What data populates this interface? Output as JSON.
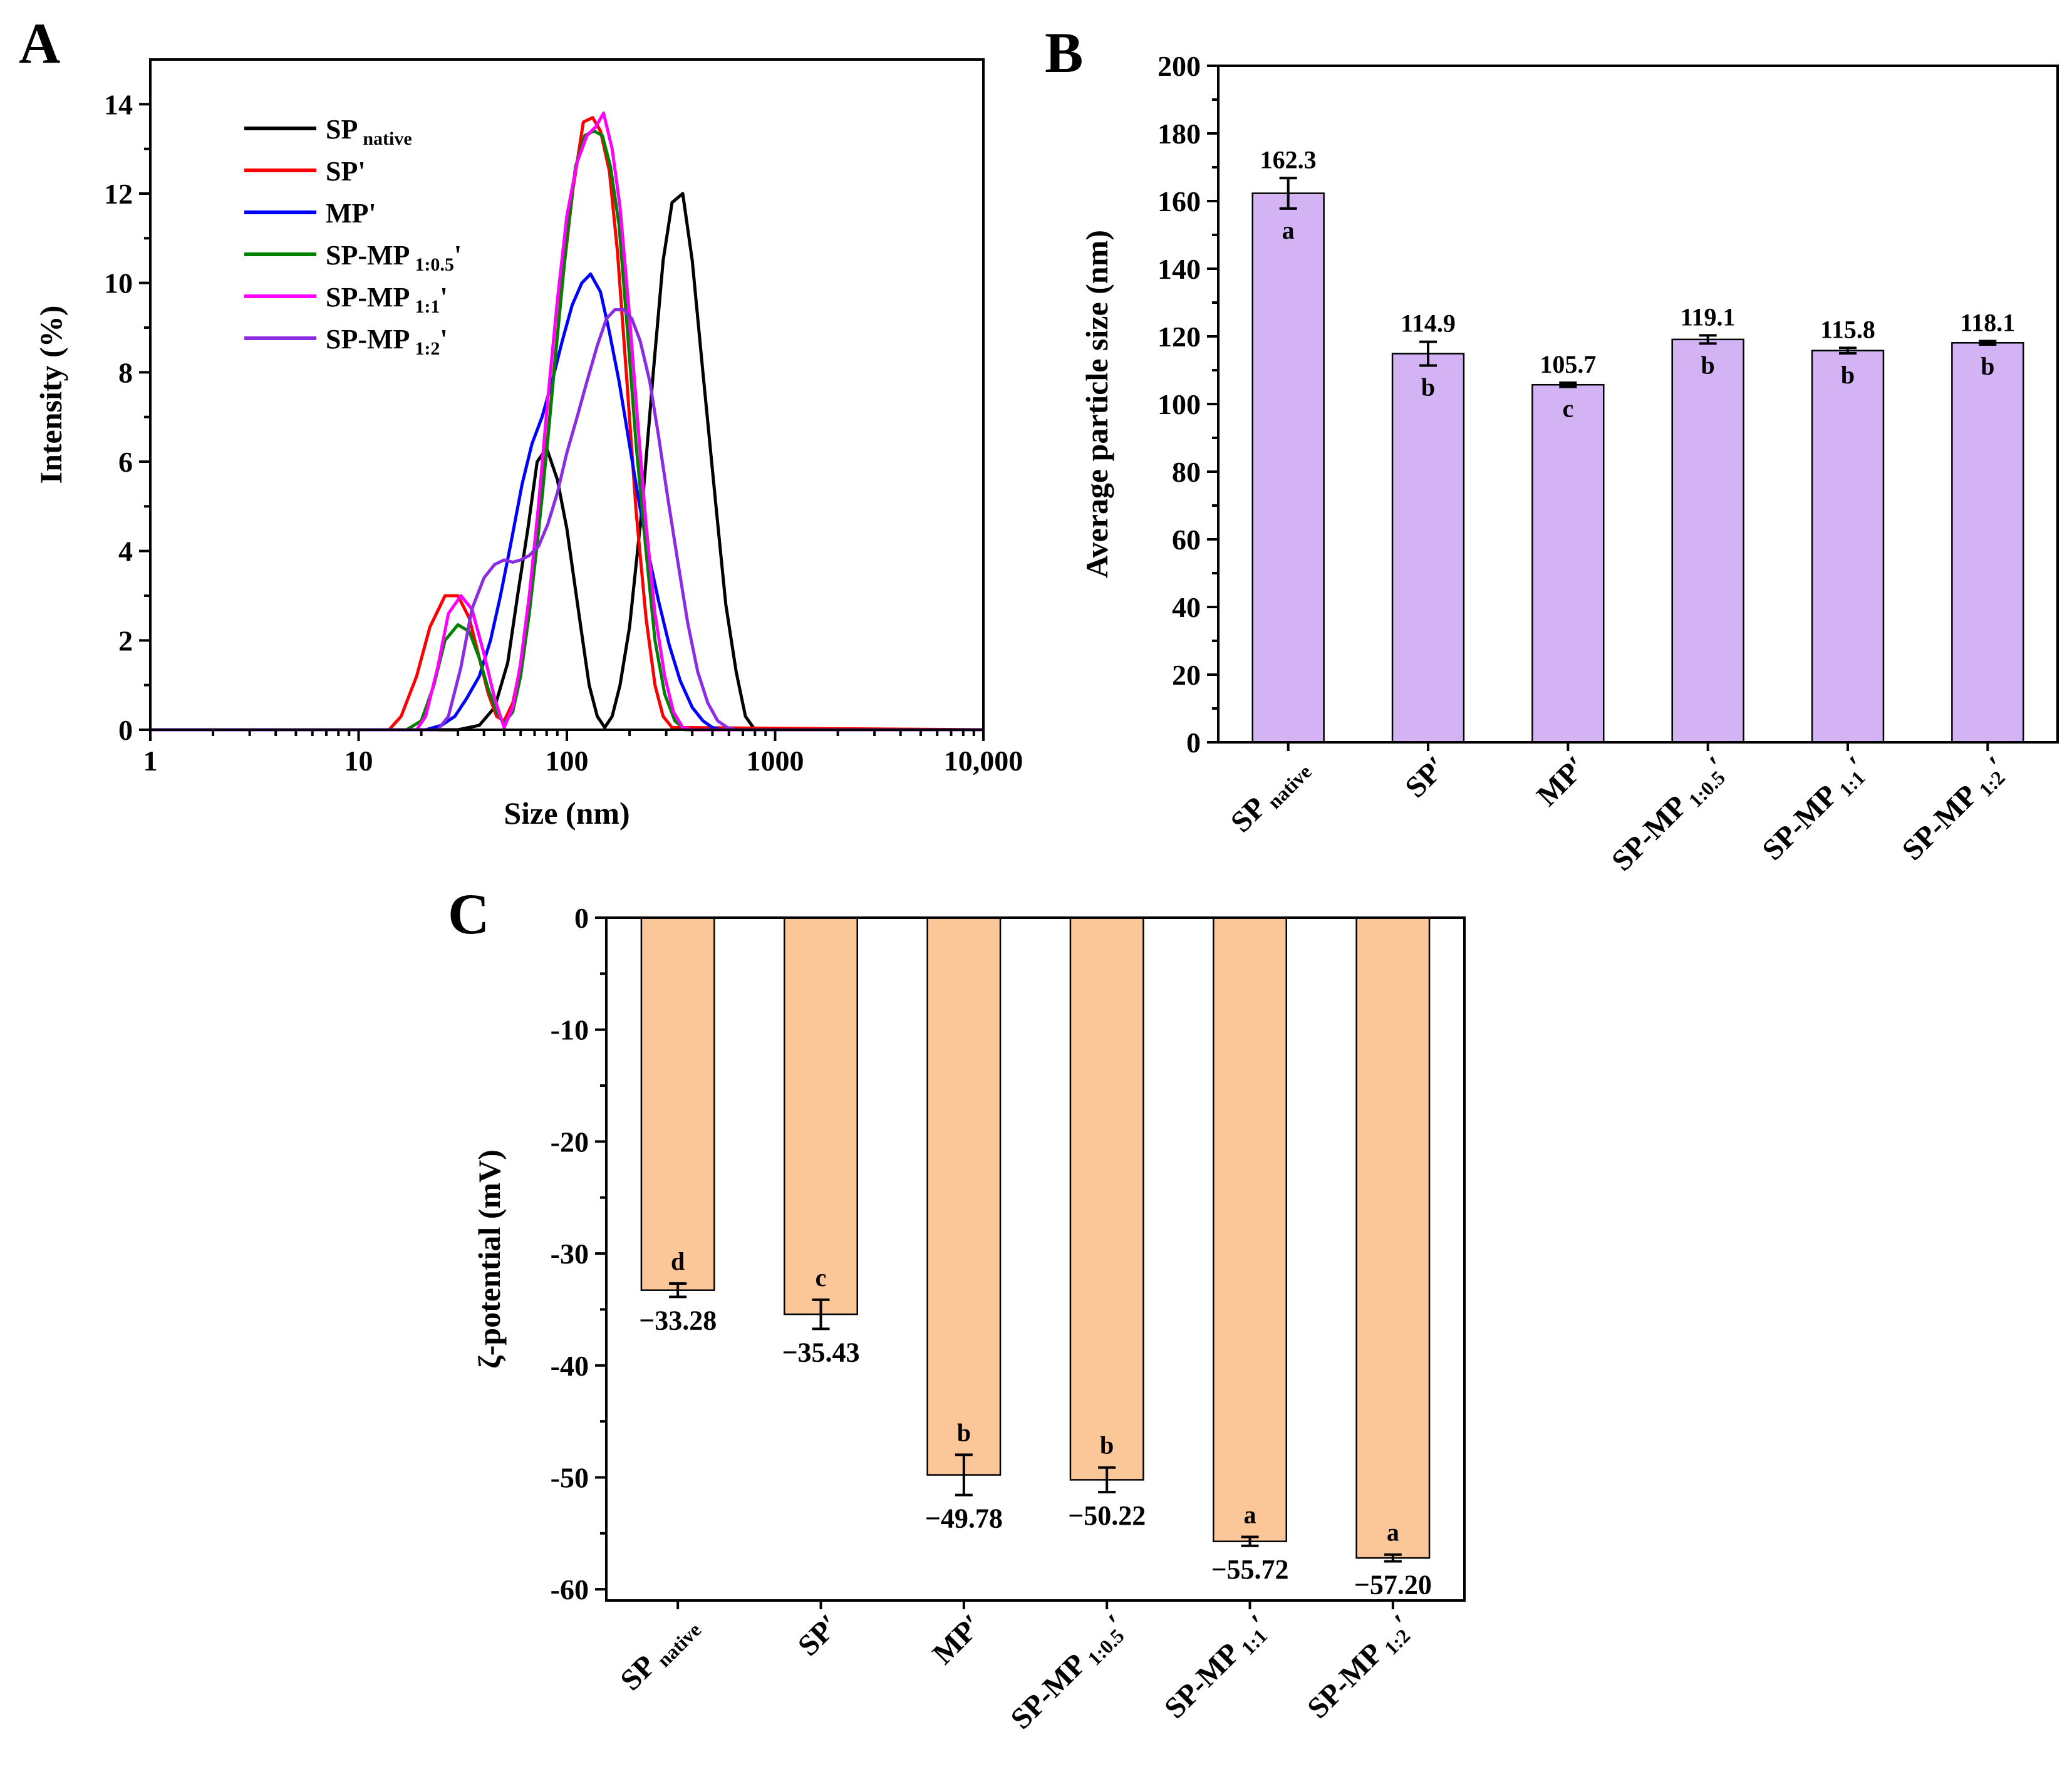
{
  "colors": {
    "sp_native": "#000000",
    "sp": "#ff0000",
    "mp": "#0000ff",
    "sp_mp_0_5": "#008000",
    "sp_mp_1_1": "#ff00ff",
    "sp_mp_1_2": "#8b2be2",
    "bar_b": "#d4b3f5",
    "bar_c": "#fbc798"
  },
  "chart_data": [
    {
      "panel": "A",
      "type": "line",
      "xscale": "log",
      "xlabel": "Size (nm)",
      "ylabel": "Intensity (%)",
      "xlim": [
        1,
        10000
      ],
      "ylim": [
        0,
        15
      ],
      "xticks": [
        1,
        10,
        100,
        1000,
        10000
      ],
      "xtick_labels": [
        "1",
        "10",
        "100",
        "1000",
        "10,000"
      ],
      "yticks": [
        0,
        2,
        4,
        6,
        8,
        10,
        12,
        14
      ],
      "legend": {
        "position": "top-left",
        "entries": [
          {
            "base": "SP",
            "sub": "native",
            "prime": ""
          },
          {
            "base": "SP'",
            "sub": "",
            "prime": ""
          },
          {
            "base": "MP'",
            "sub": "",
            "prime": ""
          },
          {
            "base": "SP-MP",
            "sub": "1:0.5",
            "prime": "'"
          },
          {
            "base": "SP-MP",
            "sub": "1:1",
            "prime": "'"
          },
          {
            "base": "SP-MP",
            "sub": "1:2",
            "prime": "'"
          }
        ]
      },
      "series": [
        {
          "name": "SP native",
          "color_key": "sp_native",
          "x": [
            1,
            30,
            38,
            45,
            52,
            58,
            65,
            72,
            80,
            90,
            100,
            115,
            128,
            140,
            152,
            165,
            180,
            200,
            230,
            260,
            290,
            320,
            360,
            400,
            450,
            520,
            580,
            650,
            720,
            800,
            10000
          ],
          "y": [
            0,
            0,
            0.1,
            0.5,
            1.5,
            3.0,
            4.5,
            6.0,
            6.3,
            5.6,
            4.5,
            2.5,
            1.0,
            0.3,
            0.05,
            0.3,
            1.0,
            2.3,
            5.0,
            8.0,
            10.5,
            11.8,
            12.0,
            10.5,
            8.0,
            5.0,
            2.8,
            1.3,
            0.3,
            0,
            0
          ]
        },
        {
          "name": "SP'",
          "color_key": "sp",
          "x": [
            1,
            14,
            16,
            19,
            22,
            26,
            30,
            34,
            38,
            42,
            46,
            50,
            55,
            61,
            68,
            76,
            85,
            95,
            107,
            120,
            133,
            145,
            160,
            175,
            195,
            215,
            240,
            265,
            290,
            320,
            10000
          ],
          "y": [
            0,
            0,
            0.3,
            1.2,
            2.3,
            3.0,
            3.0,
            2.5,
            1.6,
            0.8,
            0.3,
            0.2,
            0.6,
            1.6,
            3.2,
            5.2,
            7.6,
            10.0,
            12.1,
            13.6,
            13.7,
            13.4,
            12.5,
            10.7,
            7.7,
            4.9,
            2.5,
            1.0,
            0.3,
            0.05,
            0
          ]
        },
        {
          "name": "MP'",
          "color_key": "mp",
          "x": [
            1,
            21,
            25,
            29,
            33,
            38,
            43,
            48,
            54,
            61,
            68,
            76,
            85,
            95,
            106,
            118,
            130,
            145,
            160,
            178,
            198,
            220,
            245,
            275,
            310,
            350,
            400,
            450,
            500,
            550,
            620,
            10000
          ],
          "y": [
            0,
            0,
            0.1,
            0.3,
            0.7,
            1.2,
            2.0,
            3.0,
            4.2,
            5.5,
            6.4,
            7.0,
            7.8,
            8.7,
            9.5,
            10.0,
            10.2,
            9.8,
            8.9,
            7.8,
            6.5,
            5.2,
            4.0,
            2.9,
            1.9,
            1.1,
            0.5,
            0.2,
            0.05,
            0,
            0,
            0
          ]
        },
        {
          "name": "SP-MP 1:0.5'",
          "color_key": "sp_mp_0_5",
          "x": [
            1,
            17,
            20,
            23,
            26,
            30,
            34,
            38,
            42,
            46,
            50,
            55,
            60,
            66,
            73,
            81,
            90,
            100,
            110,
            122,
            135,
            148,
            162,
            178,
            195,
            215,
            240,
            265,
            295,
            330,
            370,
            10000
          ],
          "y": [
            0,
            0,
            0.2,
            1.0,
            2.0,
            2.35,
            2.2,
            1.6,
            0.9,
            0.4,
            0.15,
            0.4,
            1.2,
            2.6,
            4.4,
            6.5,
            8.8,
            11.0,
            12.6,
            13.3,
            13.4,
            13.3,
            12.6,
            11.3,
            9.0,
            6.4,
            4.0,
            2.0,
            0.8,
            0.2,
            0,
            0
          ]
        },
        {
          "name": "SP-MP 1:1'",
          "color_key": "sp_mp_1_1",
          "x": [
            1,
            19,
            21,
            24,
            27,
            31,
            35,
            40,
            45,
            50,
            55,
            60,
            66,
            73,
            81,
            90,
            100,
            112,
            125,
            138,
            150,
            165,
            180,
            198,
            218,
            240,
            265,
            295,
            325,
            360,
            400,
            10000
          ],
          "y": [
            0,
            0,
            0.3,
            1.4,
            2.6,
            3.0,
            2.7,
            1.7,
            0.7,
            0.05,
            0.5,
            1.5,
            3.0,
            5.0,
            7.4,
            9.6,
            11.5,
            12.7,
            13.3,
            13.5,
            13.8,
            13.0,
            11.7,
            9.5,
            7.0,
            4.6,
            2.6,
            1.2,
            0.4,
            0.05,
            0,
            0
          ]
        },
        {
          "name": "SP-MP 1:2'",
          "color_key": "sp_mp_1_2",
          "x": [
            1,
            24,
            27,
            31,
            35,
            40,
            45,
            50,
            55,
            60,
            66,
            73,
            81,
            90,
            100,
            112,
            125,
            140,
            155,
            170,
            188,
            205,
            225,
            250,
            275,
            305,
            340,
            380,
            425,
            475,
            530,
            590,
            650,
            10000
          ],
          "y": [
            0,
            0,
            0.3,
            1.4,
            2.7,
            3.4,
            3.7,
            3.8,
            3.75,
            3.8,
            3.9,
            4.1,
            4.6,
            5.3,
            6.2,
            7.0,
            7.8,
            8.6,
            9.2,
            9.4,
            9.4,
            9.2,
            8.7,
            7.8,
            6.6,
            5.2,
            3.8,
            2.4,
            1.3,
            0.6,
            0.2,
            0.05,
            0,
            0
          ]
        }
      ]
    },
    {
      "panel": "B",
      "type": "bar",
      "ylabel": "Average particle size (nm)",
      "ylim": [
        0,
        200
      ],
      "yticks": [
        0,
        20,
        40,
        60,
        80,
        100,
        120,
        140,
        160,
        180,
        200
      ],
      "categories": [
        {
          "base": "SP",
          "sub": "native",
          "prime": ""
        },
        {
          "base": "SP′",
          "sub": "",
          "prime": ""
        },
        {
          "base": "MP′",
          "sub": "",
          "prime": ""
        },
        {
          "base": "SP-MP",
          "sub": "1:0.5",
          "prime": "′"
        },
        {
          "base": "SP-MP",
          "sub": "1:1",
          "prime": "′"
        },
        {
          "base": "SP-MP",
          "sub": "1:2",
          "prime": "′"
        }
      ],
      "values": [
        162.3,
        114.9,
        105.7,
        119.1,
        115.8,
        118.1
      ],
      "errors": [
        4.5,
        3.5,
        0.6,
        1.2,
        0.8,
        0.5
      ],
      "value_labels": [
        "162.3",
        "114.9",
        "105.7",
        "119.1",
        "115.8",
        "118.1"
      ],
      "letters": [
        "a",
        "b",
        "c",
        "b",
        "b",
        "b"
      ]
    },
    {
      "panel": "C",
      "type": "bar",
      "ylabel": "ζ-potential (mV)",
      "ylim": [
        -61,
        0
      ],
      "yticks": [
        0,
        -10,
        -20,
        -30,
        -40,
        -50,
        -60
      ],
      "ytick_labels": [
        "0",
        "-10",
        "-20",
        "-30",
        "-40",
        "-50",
        "-60"
      ],
      "categories": [
        {
          "base": "SP",
          "sub": "native",
          "prime": ""
        },
        {
          "base": "SP′",
          "sub": "",
          "prime": ""
        },
        {
          "base": "MP′",
          "sub": "",
          "prime": ""
        },
        {
          "base": "SP-MP",
          "sub": "1:0.5",
          "prime": "′"
        },
        {
          "base": "SP-MP",
          "sub": "1:1",
          "prime": "′"
        },
        {
          "base": "SP-MP",
          "sub": "1:2",
          "prime": "′"
        }
      ],
      "values": [
        -33.28,
        -35.43,
        -49.78,
        -50.22,
        -55.72,
        -57.2
      ],
      "errors": [
        0.6,
        1.3,
        1.8,
        1.1,
        0.4,
        0.3
      ],
      "value_labels": [
        "−33.28",
        "−35.43",
        "−49.78",
        "−50.22",
        "−55.72",
        "−57.20"
      ],
      "letters": [
        "d",
        "c",
        "b",
        "b",
        "a",
        "a"
      ]
    }
  ],
  "panel_labels": [
    "A",
    "B",
    "C"
  ]
}
